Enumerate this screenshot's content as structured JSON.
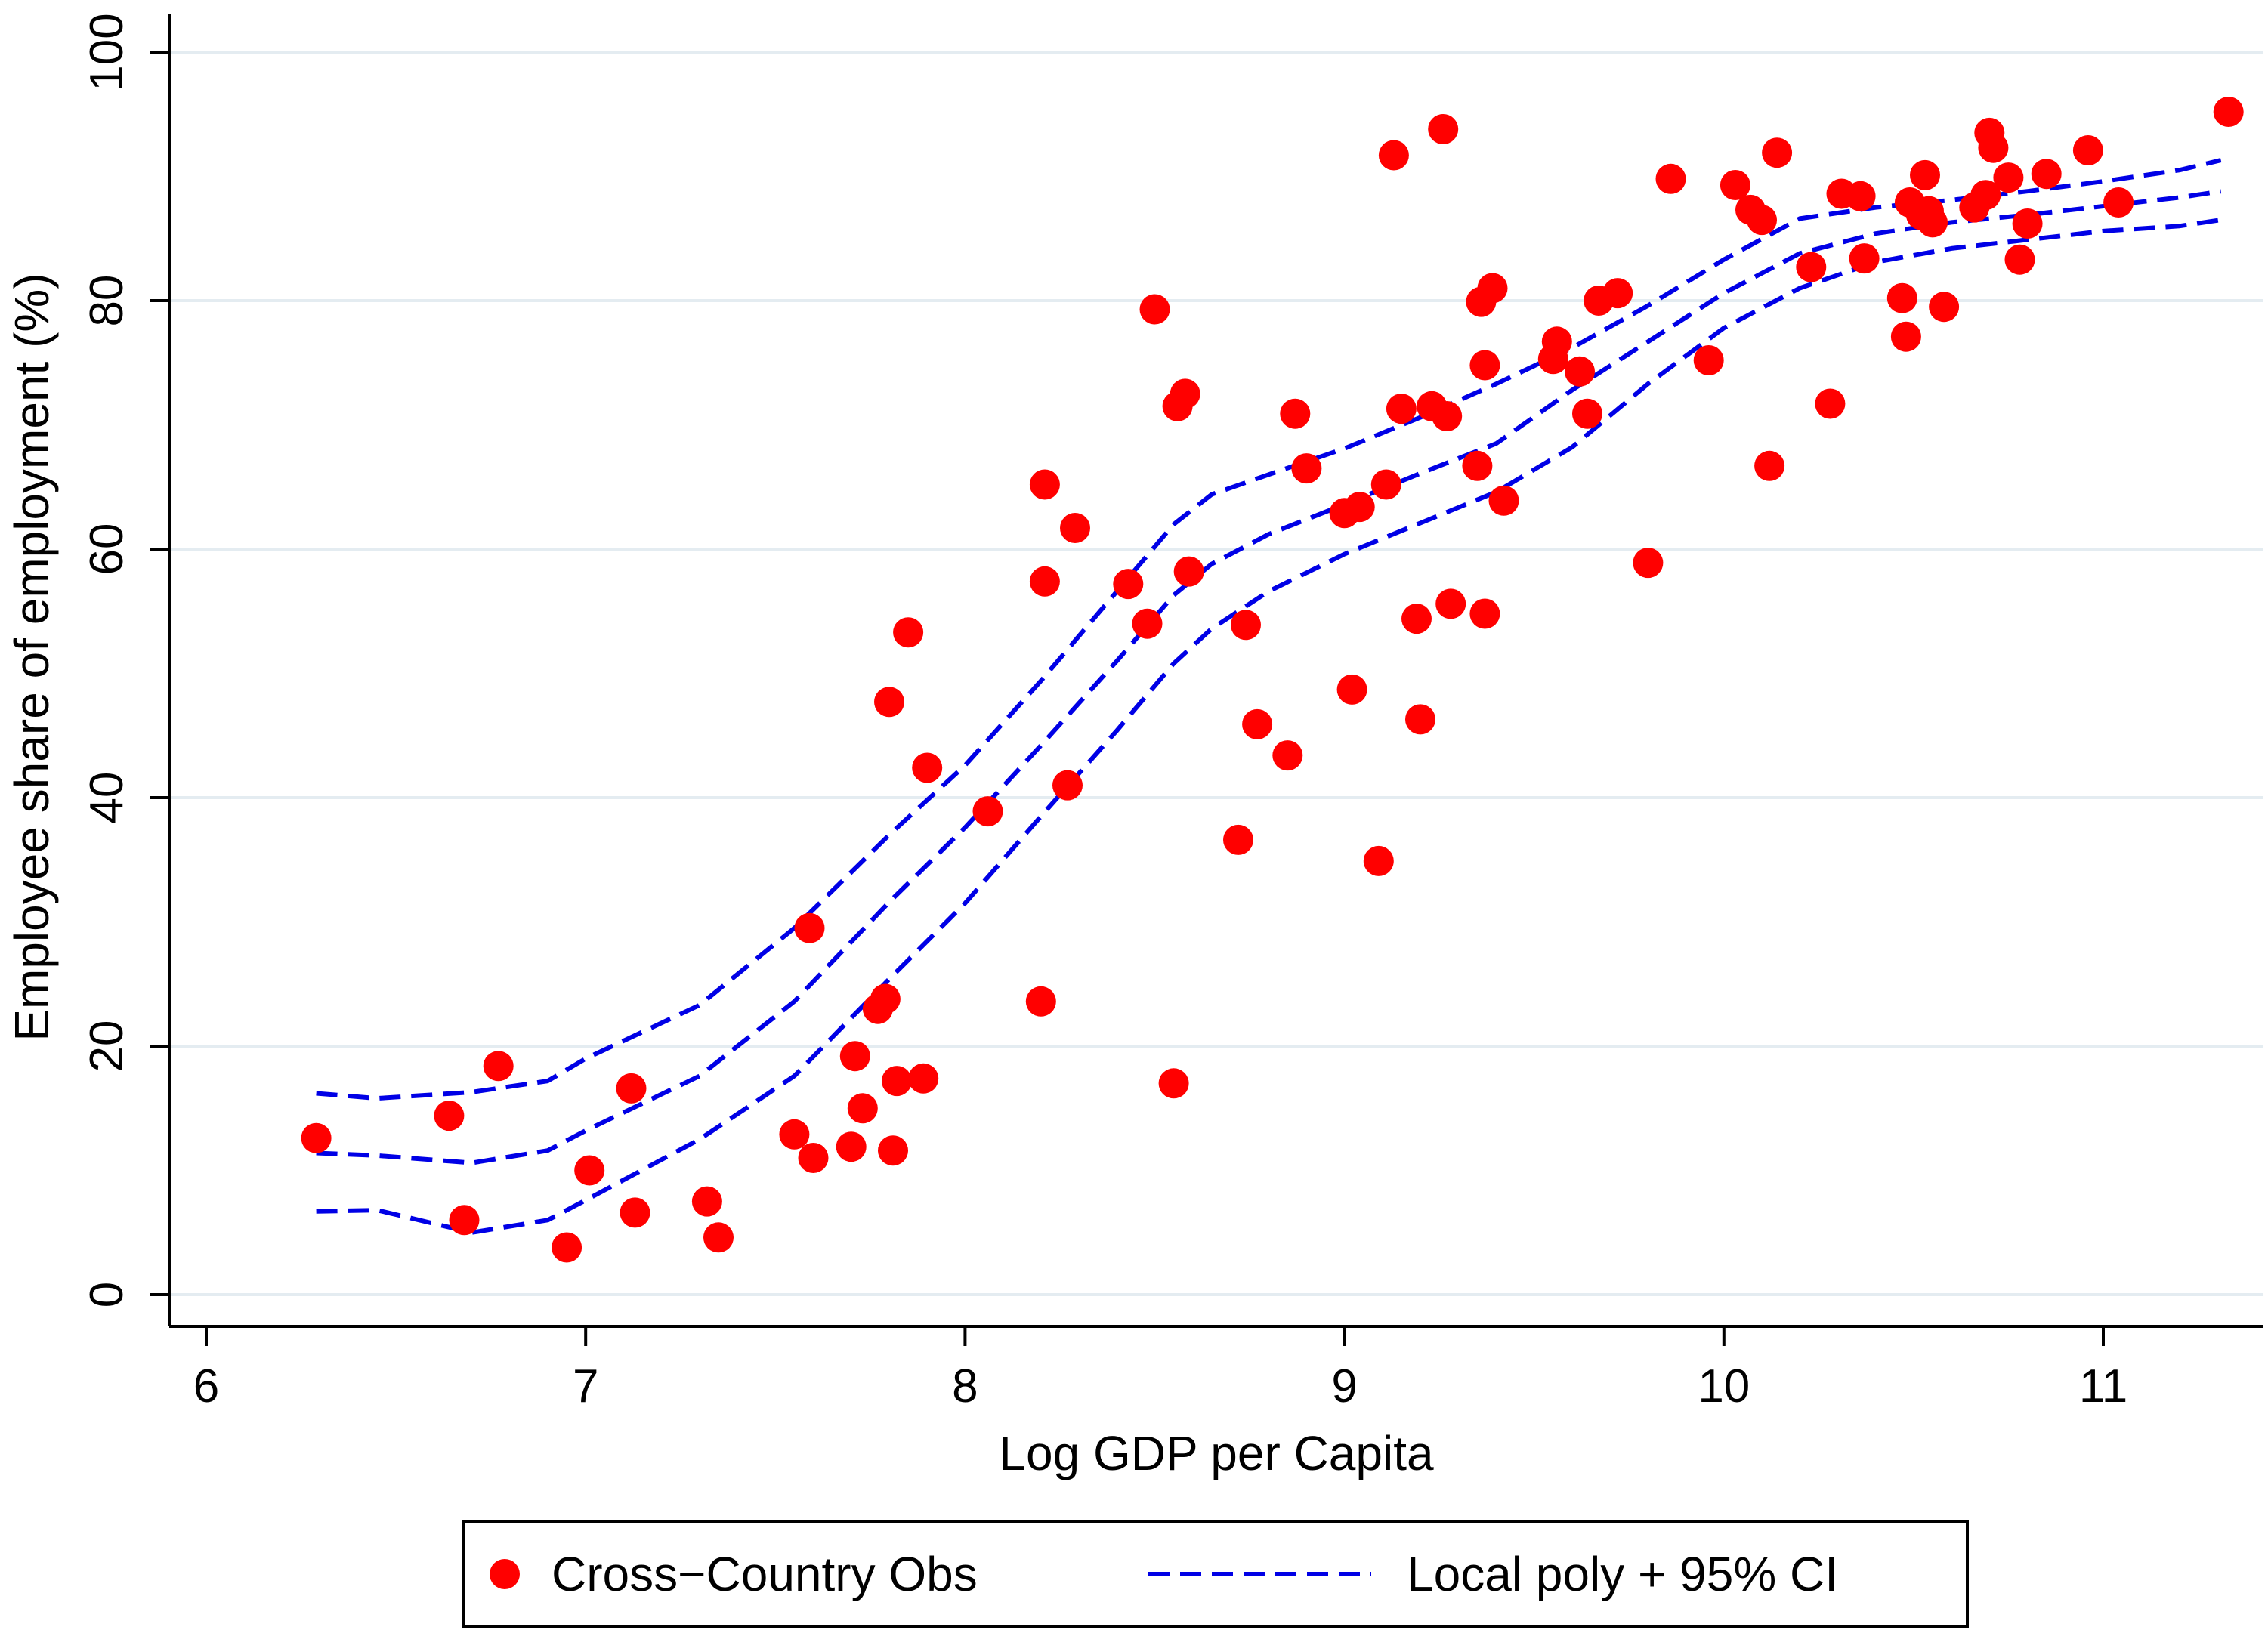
{
  "chart_data": {
    "type": "scatter",
    "title": "",
    "xlabel": "Log GDP per Capita",
    "ylabel": "Employee share of employment (%)",
    "xlim": [
      5.9,
      11.4
    ],
    "ylim": [
      -3,
      103
    ],
    "x_ticks": [
      6,
      7,
      8,
      9,
      10,
      11
    ],
    "y_ticks": [
      0,
      20,
      40,
      60,
      80,
      100
    ],
    "x_tick_labels": [
      "6",
      "7",
      "8",
      "9",
      "10",
      "11"
    ],
    "y_tick_labels": [
      "0",
      "20",
      "40",
      "60",
      "80",
      "100"
    ],
    "grid": true,
    "legend_placement": "bottom",
    "colors": {
      "points": "#ff0000",
      "lines": "#0000e6",
      "grid": "#e4ecf1"
    },
    "legend": [
      {
        "label": "Cross−Country Obs",
        "marker": "circle"
      },
      {
        "label": "Local poly + 95% CI",
        "marker": "dashed-line"
      }
    ],
    "series": [
      {
        "name": "Cross−Country Obs",
        "kind": "scatter",
        "points": [
          [
            6.29,
            12.6
          ],
          [
            6.64,
            14.4
          ],
          [
            6.68,
            6.0
          ],
          [
            6.77,
            18.4
          ],
          [
            6.95,
            3.8
          ],
          [
            7.01,
            10.0
          ],
          [
            7.12,
            16.6
          ],
          [
            7.13,
            6.6
          ],
          [
            7.32,
            7.5
          ],
          [
            7.35,
            4.6
          ],
          [
            7.55,
            12.9
          ],
          [
            7.59,
            29.5
          ],
          [
            7.6,
            11.0
          ],
          [
            7.7,
            11.9
          ],
          [
            7.71,
            19.2
          ],
          [
            7.73,
            15.0
          ],
          [
            7.77,
            23.0
          ],
          [
            7.79,
            23.8
          ],
          [
            7.8,
            47.7
          ],
          [
            7.81,
            11.6
          ],
          [
            7.82,
            17.2
          ],
          [
            7.85,
            53.3
          ],
          [
            7.89,
            17.4
          ],
          [
            7.9,
            42.4
          ],
          [
            8.06,
            38.9
          ],
          [
            8.2,
            23.6
          ],
          [
            8.21,
            65.2
          ],
          [
            8.21,
            57.4
          ],
          [
            8.27,
            41.0
          ],
          [
            8.29,
            61.7
          ],
          [
            8.43,
            57.2
          ],
          [
            8.48,
            54.0
          ],
          [
            8.5,
            79.3
          ],
          [
            8.55,
            17.0
          ],
          [
            8.56,
            71.5
          ],
          [
            8.58,
            72.5
          ],
          [
            8.59,
            58.2
          ],
          [
            8.72,
            36.6
          ],
          [
            8.74,
            53.9
          ],
          [
            8.77,
            45.9
          ],
          [
            8.85,
            43.4
          ],
          [
            8.87,
            70.9
          ],
          [
            8.9,
            66.5
          ],
          [
            9.0,
            62.9
          ],
          [
            9.02,
            48.7
          ],
          [
            9.04,
            63.4
          ],
          [
            9.09,
            34.9
          ],
          [
            9.11,
            65.2
          ],
          [
            9.13,
            91.7
          ],
          [
            9.15,
            71.3
          ],
          [
            9.19,
            54.4
          ],
          [
            9.2,
            46.3
          ],
          [
            9.23,
            71.5
          ],
          [
            9.26,
            93.8
          ],
          [
            9.27,
            70.7
          ],
          [
            9.28,
            55.6
          ],
          [
            9.35,
            66.7
          ],
          [
            9.36,
            79.9
          ],
          [
            9.37,
            54.8
          ],
          [
            9.37,
            74.8
          ],
          [
            9.39,
            81.0
          ],
          [
            9.42,
            63.9
          ],
          [
            9.55,
            75.3
          ],
          [
            9.56,
            76.7
          ],
          [
            9.62,
            74.3
          ],
          [
            9.64,
            70.9
          ],
          [
            9.67,
            80.0
          ],
          [
            9.72,
            80.6
          ],
          [
            9.8,
            58.9
          ],
          [
            9.86,
            89.8
          ],
          [
            9.96,
            75.2
          ],
          [
            10.03,
            89.3
          ],
          [
            10.07,
            87.3
          ],
          [
            10.1,
            86.5
          ],
          [
            10.12,
            66.7
          ],
          [
            10.14,
            91.9
          ],
          [
            10.23,
            82.7
          ],
          [
            10.28,
            71.7
          ],
          [
            10.31,
            88.6
          ],
          [
            10.36,
            88.4
          ],
          [
            10.37,
            83.4
          ],
          [
            10.47,
            80.2
          ],
          [
            10.48,
            77.1
          ],
          [
            10.49,
            87.9
          ],
          [
            10.52,
            86.9
          ],
          [
            10.53,
            90.1
          ],
          [
            10.54,
            87.2
          ],
          [
            10.55,
            86.3
          ],
          [
            10.58,
            79.5
          ],
          [
            10.66,
            87.5
          ],
          [
            10.69,
            88.5
          ],
          [
            10.7,
            93.5
          ],
          [
            10.71,
            92.3
          ],
          [
            10.75,
            89.9
          ],
          [
            10.78,
            83.3
          ],
          [
            10.8,
            86.2
          ],
          [
            10.85,
            90.2
          ],
          [
            10.96,
            92.1
          ],
          [
            11.04,
            87.9
          ],
          [
            11.33,
            95.2
          ]
        ]
      },
      {
        "name": "Local poly + 95% CI",
        "kind": "line",
        "x": [
          6.29,
          6.45,
          6.7,
          6.9,
          7.0,
          7.3,
          7.55,
          7.8,
          8.0,
          8.2,
          8.4,
          8.55,
          8.65,
          8.8,
          9.0,
          9.2,
          9.4,
          9.6,
          9.8,
          10.0,
          10.2,
          10.4,
          10.6,
          10.8,
          11.0,
          11.2,
          11.31
        ],
        "y": [
          11.4,
          11.2,
          10.6,
          11.6,
          13.2,
          17.6,
          23.6,
          31.6,
          37.6,
          44.2,
          51.0,
          56.3,
          58.8,
          61.2,
          63.6,
          66.1,
          68.5,
          72.8,
          76.7,
          80.6,
          83.8,
          85.4,
          86.3,
          86.9,
          87.6,
          88.3,
          88.8
        ]
      },
      {
        "name": "CI upper",
        "kind": "line",
        "x": [
          6.29,
          6.45,
          6.7,
          6.9,
          7.0,
          7.3,
          7.55,
          7.8,
          8.0,
          8.2,
          8.4,
          8.55,
          8.65,
          8.8,
          9.0,
          9.2,
          9.4,
          9.6,
          9.8,
          10.0,
          10.2,
          10.4,
          10.6,
          10.8,
          11.0,
          11.2,
          11.31
        ],
        "y": [
          16.2,
          15.8,
          16.3,
          17.2,
          19.0,
          23.3,
          29.5,
          37.0,
          42.6,
          49.4,
          56.6,
          62.0,
          64.4,
          66.0,
          68.1,
          70.6,
          73.3,
          76.2,
          79.6,
          83.3,
          86.6,
          87.5,
          88.1,
          88.8,
          89.6,
          90.5,
          91.3
        ]
      },
      {
        "name": "CI lower",
        "kind": "line",
        "x": [
          6.29,
          6.45,
          6.7,
          6.9,
          7.0,
          7.3,
          7.55,
          7.8,
          8.0,
          8.2,
          8.4,
          8.55,
          8.65,
          8.8,
          9.0,
          9.2,
          9.4,
          9.6,
          9.8,
          10.0,
          10.2,
          10.4,
          10.6,
          10.8,
          11.0,
          11.2,
          11.31
        ],
        "y": [
          6.7,
          6.8,
          5.0,
          6.0,
          7.6,
          12.5,
          17.6,
          25.4,
          31.5,
          38.5,
          45.4,
          50.8,
          53.6,
          56.6,
          59.6,
          62.1,
          64.6,
          68.2,
          73.3,
          77.8,
          81.0,
          83.1,
          84.2,
          84.9,
          85.6,
          86.0,
          86.5
        ]
      }
    ]
  }
}
